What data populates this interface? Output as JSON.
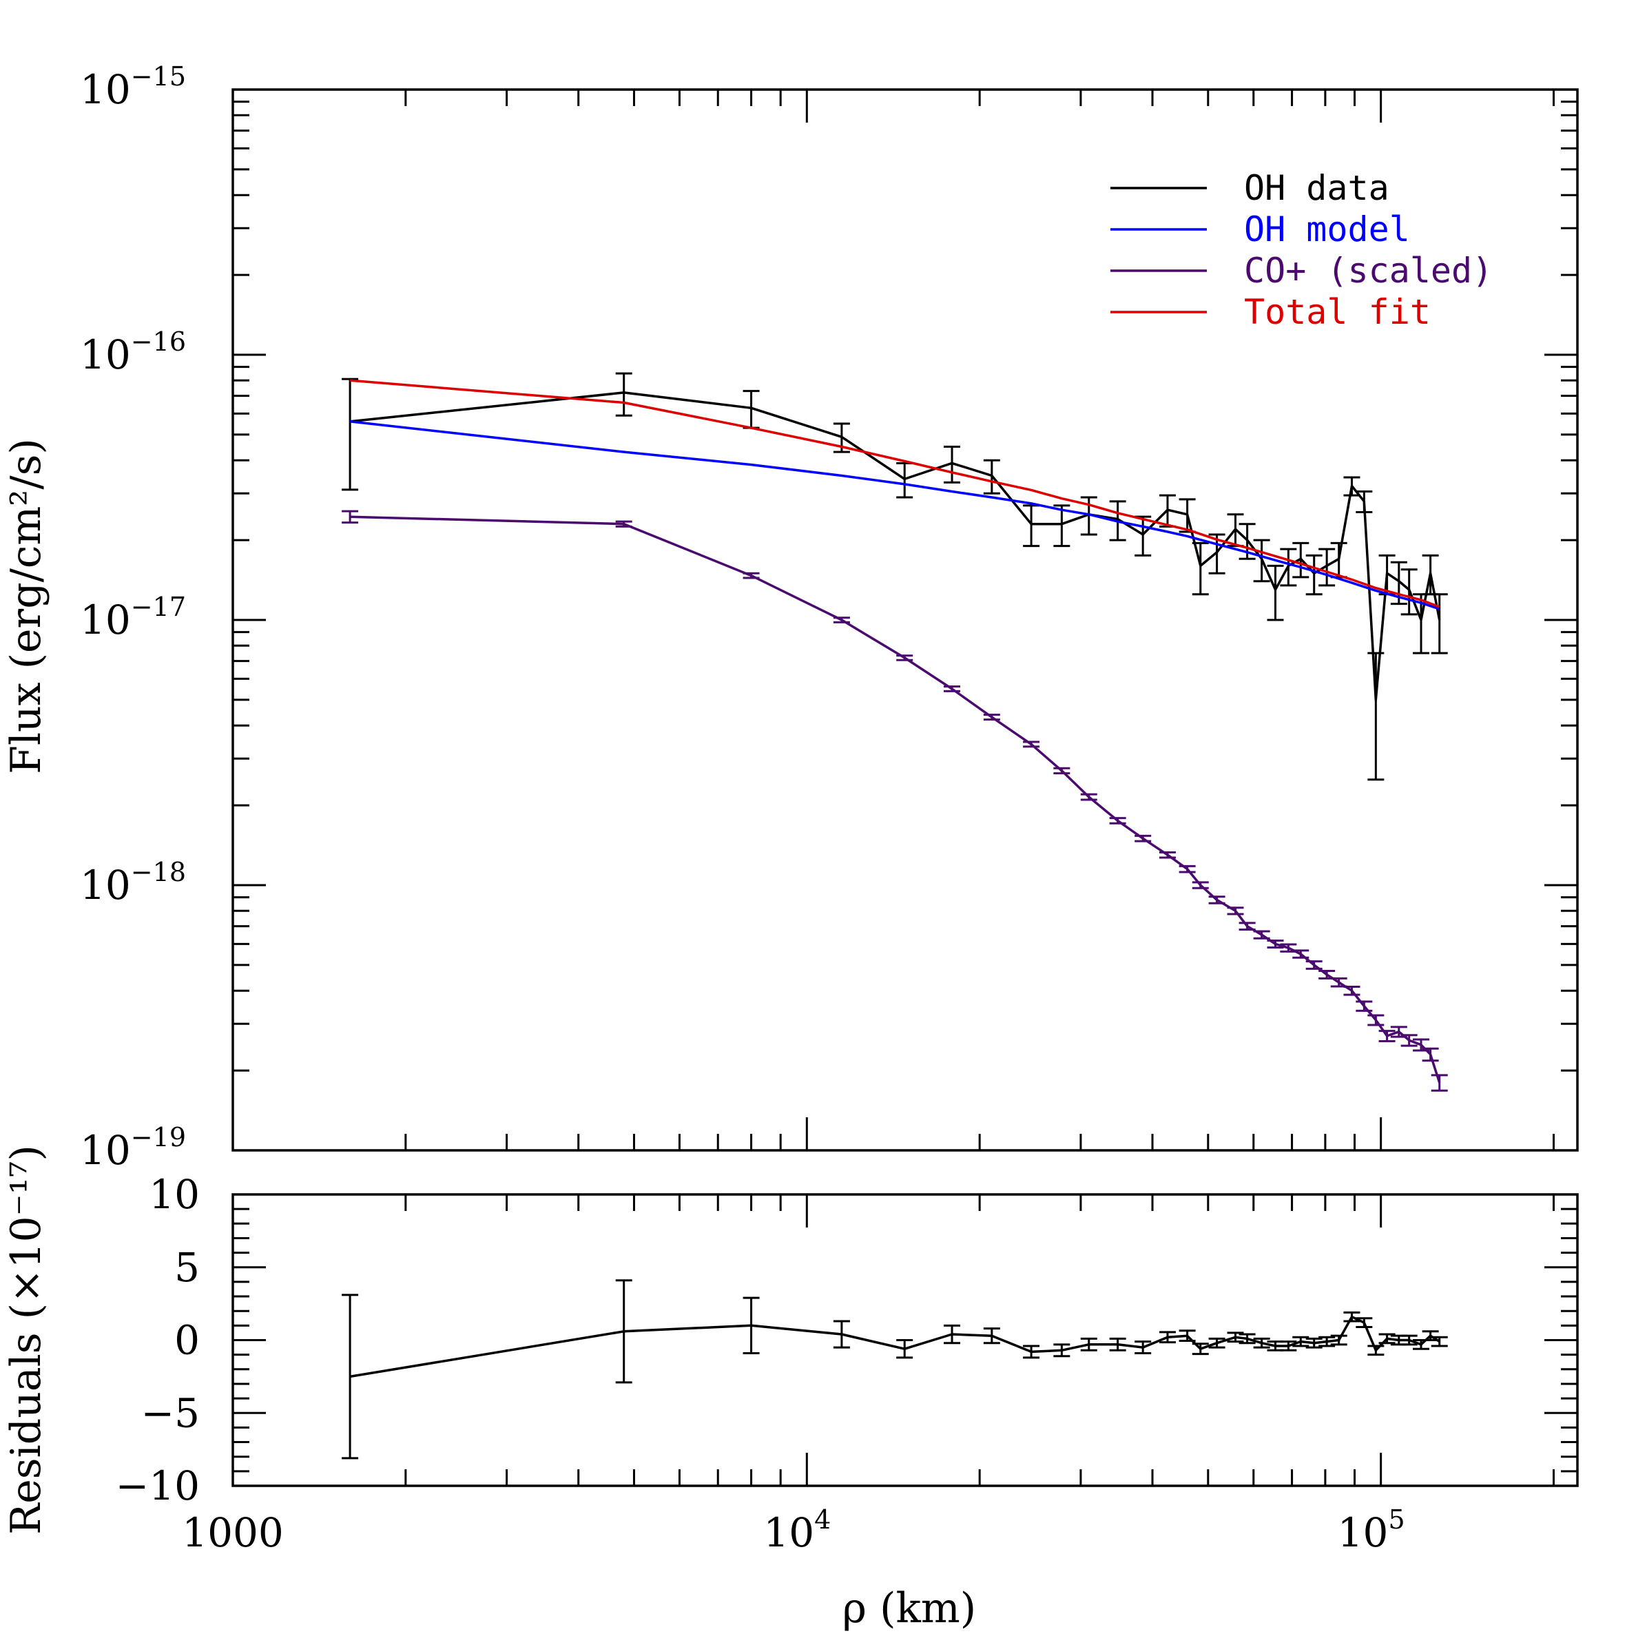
{
  "chart_data": [
    {
      "type": "line",
      "panel": "flux",
      "ylabel": "Flux (erg/cm²/s)",
      "xscale": "log",
      "yscale": "log",
      "xlim": [
        1000,
        220000
      ],
      "ylim": [
        1e-19,
        1e-15
      ],
      "yticks": [
        {
          "base": "10",
          "exp": "−15"
        },
        {
          "base": "10",
          "exp": "−16"
        },
        {
          "base": "10",
          "exp": "−17"
        },
        {
          "base": "10",
          "exp": "−18"
        },
        {
          "base": "10",
          "exp": "−19"
        }
      ],
      "legend_position": "top-right",
      "series": [
        {
          "name": "OH data",
          "color": "#000000",
          "error_bars": true,
          "x": [
            1600,
            4800,
            8000,
            11500,
            14800,
            17900,
            21000,
            24600,
            27800,
            31000,
            34800,
            38500,
            42500,
            46000,
            48500,
            51800,
            55800,
            58500,
            62000,
            65500,
            69000,
            72500,
            76500,
            80500,
            84500,
            89000,
            93500,
            98000,
            102500,
            107500,
            112000,
            117500,
            122000,
            126500
          ],
          "y": [
            5.6e-17,
            7.2e-17,
            6.3e-17,
            4.9e-17,
            3.4e-17,
            3.9e-17,
            3.5e-17,
            2.3e-17,
            2.3e-17,
            2.5e-17,
            2.4e-17,
            2.1e-17,
            2.6e-17,
            2.5e-17,
            1.6e-17,
            1.8e-17,
            2.2e-17,
            2e-17,
            1.7e-17,
            1.3e-17,
            1.6e-17,
            1.7e-17,
            1.5e-17,
            1.6e-17,
            1.7e-17,
            3.2e-17,
            2.8e-17,
            5e-18,
            1.5e-17,
            1.4e-17,
            1.3e-17,
            1e-17,
            1.5e-17,
            1e-17
          ],
          "yerr": [
            2.5e-17,
            1.3e-17,
            1e-17,
            6e-18,
            5e-18,
            6e-18,
            5e-18,
            4e-18,
            4e-18,
            4e-18,
            4e-18,
            3.5e-18,
            3.5e-18,
            3.5e-18,
            3.5e-18,
            3e-18,
            3e-18,
            3e-18,
            3e-18,
            3e-18,
            2.5e-18,
            2.5e-18,
            2.5e-18,
            2.5e-18,
            2.5e-18,
            2.5e-18,
            2.5e-18,
            2.5e-18,
            2.5e-18,
            2.5e-18,
            2.5e-18,
            2.5e-18,
            2.5e-18,
            2.5e-18
          ]
        },
        {
          "name": "OH model",
          "color": "#0000ff",
          "x": [
            1600,
            4800,
            8000,
            11500,
            14800,
            17900,
            21000,
            24600,
            27800,
            31000,
            34800,
            38500,
            42500,
            46000,
            51800,
            58500,
            65500,
            72500,
            80500,
            89000,
            98000,
            107500,
            117500,
            126500
          ],
          "y": [
            5.6e-17,
            4.3e-17,
            3.85e-17,
            3.5e-17,
            3.25e-17,
            3.05e-17,
            2.9e-17,
            2.75e-17,
            2.6e-17,
            2.5e-17,
            2.35e-17,
            2.25e-17,
            2.15e-17,
            2.07e-17,
            1.93e-17,
            1.8e-17,
            1.68e-17,
            1.58e-17,
            1.48e-17,
            1.38e-17,
            1.29e-17,
            1.22e-17,
            1.16e-17,
            1.1e-17
          ]
        },
        {
          "name": "CO+ (scaled)",
          "color": "#4b0a6e",
          "error_bars": true,
          "x": [
            1600,
            4800,
            8000,
            11500,
            14800,
            17900,
            21000,
            24600,
            27800,
            31000,
            34800,
            38500,
            42500,
            46000,
            48500,
            51800,
            55800,
            58500,
            62000,
            65500,
            69000,
            72500,
            76500,
            80500,
            84500,
            89000,
            93500,
            98000,
            102500,
            107500,
            112000,
            117500,
            122000,
            126500
          ],
          "y": [
            2.45e-17,
            2.3e-17,
            1.47e-17,
            1e-17,
            7.2e-18,
            5.5e-18,
            4.3e-18,
            3.4e-18,
            2.7e-18,
            2.15e-18,
            1.75e-18,
            1.5e-18,
            1.3e-18,
            1.15e-18,
            1e-18,
            8.8e-19,
            8e-19,
            7e-19,
            6.5e-19,
            6e-19,
            5.8e-19,
            5.5e-19,
            5e-19,
            4.6e-19,
            4.3e-19,
            4e-19,
            3.5e-19,
            3.1e-19,
            2.7e-19,
            2.8e-19,
            2.6e-19,
            2.5e-19,
            2.3e-19,
            1.8e-19
          ],
          "yerr": [
            1.2e-18,
            5e-19,
            3e-19,
            2e-19,
            1.4e-19,
            1.1e-19,
            9e-20,
            7e-20,
            6e-20,
            5e-20,
            4e-20,
            3.5e-20,
            3e-20,
            3e-20,
            2.5e-20,
            2.5e-20,
            2.2e-20,
            2e-20,
            2e-20,
            1.8e-20,
            1.8e-20,
            1.7e-20,
            1.6e-20,
            1.5e-20,
            1.5e-20,
            1.4e-20,
            1.4e-20,
            1.3e-20,
            1.2e-20,
            1.2e-20,
            1.2e-20,
            1.2e-20,
            1.2e-20,
            1.2e-20
          ]
        },
        {
          "name": "Total fit",
          "color": "#dd0000",
          "x": [
            1600,
            4800,
            8000,
            11500,
            14800,
            17900,
            21000,
            24600,
            27800,
            31000,
            34800,
            38500,
            42500,
            46000,
            51800,
            58500,
            65500,
            72500,
            80500,
            89000,
            98000,
            107500,
            117500,
            126500
          ],
          "y": [
            8e-17,
            6.6e-17,
            5.3e-17,
            4.5e-17,
            3.97e-17,
            3.6e-17,
            3.33e-17,
            3.09e-17,
            2.87e-17,
            2.72e-17,
            2.53e-17,
            2.4e-17,
            2.28e-17,
            2.19e-17,
            2.01e-17,
            1.87e-17,
            1.74e-17,
            1.63e-17,
            1.52e-17,
            1.42e-17,
            1.32e-17,
            1.25e-17,
            1.19e-17,
            1.12e-17
          ]
        }
      ]
    },
    {
      "type": "line",
      "panel": "residuals",
      "ylabel": "Residuals (×10⁻¹⁷)",
      "xlabel": "ρ (km)",
      "xscale": "log",
      "xlim": [
        1000,
        220000
      ],
      "ylim": [
        -10,
        10
      ],
      "yticks": [
        "10",
        "5",
        "0",
        "−5",
        "−10"
      ],
      "xticks": [
        {
          "base": "1000",
          "exp": ""
        },
        {
          "base": "10",
          "exp": "4"
        },
        {
          "base": "10",
          "exp": "5"
        }
      ],
      "series": [
        {
          "name": "",
          "color": "#000000",
          "error_bars": true,
          "x": [
            1600,
            4800,
            8000,
            11500,
            14800,
            17900,
            21000,
            24600,
            27800,
            31000,
            34800,
            38500,
            42500,
            46000,
            48500,
            51800,
            55800,
            58500,
            62000,
            65500,
            69000,
            72500,
            76500,
            80500,
            84500,
            89000,
            93500,
            98000,
            102500,
            107500,
            112000,
            117500,
            122000,
            126500
          ],
          "y": [
            -2.5,
            0.6,
            1.0,
            0.4,
            -0.6,
            0.4,
            0.3,
            -0.8,
            -0.7,
            -0.3,
            -0.3,
            -0.5,
            0.2,
            0.3,
            -0.6,
            -0.2,
            0.2,
            0.1,
            -0.2,
            -0.4,
            -0.4,
            -0.1,
            -0.2,
            -0.1,
            0.0,
            1.6,
            1.2,
            -0.7,
            0.1,
            0.0,
            0.0,
            -0.3,
            0.3,
            -0.1
          ],
          "yerr": [
            5.6,
            3.5,
            1.9,
            0.9,
            0.6,
            0.6,
            0.5,
            0.4,
            0.4,
            0.4,
            0.4,
            0.4,
            0.35,
            0.35,
            0.35,
            0.3,
            0.3,
            0.3,
            0.3,
            0.3,
            0.3,
            0.3,
            0.3,
            0.3,
            0.3,
            0.3,
            0.3,
            0.3,
            0.3,
            0.3,
            0.3,
            0.3,
            0.3,
            0.3
          ]
        }
      ]
    }
  ]
}
